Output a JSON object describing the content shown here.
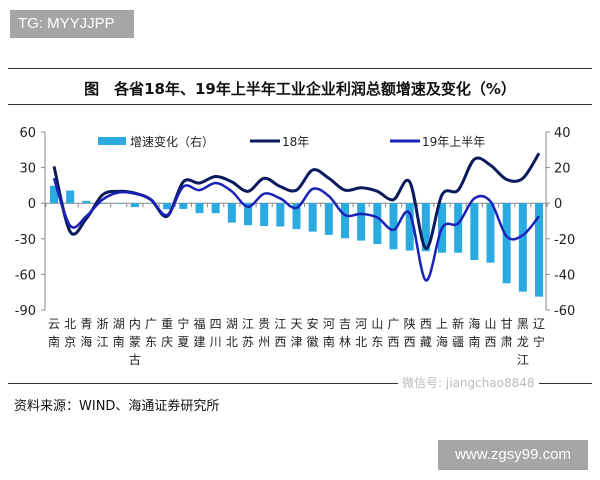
{
  "header": {
    "tag": "TG: MYYJJPP"
  },
  "chart_data": {
    "type": "bar+line",
    "title": "图　各省18年、19年上半年工业企业利润总额增速及变化（%）",
    "categories": [
      "云南",
      "北京",
      "青海",
      "浙江",
      "湖南",
      "内蒙古",
      "广东",
      "重庆",
      "宁夏",
      "福建",
      "四川",
      "湖北",
      "江苏",
      "贵州",
      "江西",
      "天津",
      "安徽",
      "河南",
      "吉林",
      "河北",
      "山东",
      "广西",
      "陕西",
      "西藏",
      "上海",
      "新疆",
      "海南",
      "山西",
      "甘肃",
      "黑龙江",
      "辽宁"
    ],
    "left_axis": {
      "ylim": [
        -90,
        60
      ],
      "ticks": [
        "60",
        "30",
        "0",
        "-30",
        "-60",
        "-90"
      ]
    },
    "right_axis": {
      "ylim": [
        -60,
        40
      ],
      "ticks": [
        "40",
        "20",
        "0",
        "-20",
        "-40",
        "-60"
      ]
    },
    "series": [
      {
        "name": "增速变化（右）",
        "kind": "bar",
        "axis": "right",
        "color": "#29abe2",
        "values": [
          9.8,
          7.1,
          1.3,
          0,
          0,
          -2.2,
          0,
          -3.4,
          -3.2,
          -5.6,
          -5.6,
          -10.9,
          -12.4,
          -12.8,
          -13.1,
          -14.6,
          -16,
          -17.8,
          -19.7,
          -21,
          -22.9,
          -25.9,
          -26.6,
          -27,
          -27.8,
          -27.8,
          -31.9,
          -33.4,
          -45,
          -49.7,
          -52.5
        ]
      },
      {
        "name": "18年",
        "kind": "line",
        "axis": "left",
        "color": "#0b1a5c",
        "values": [
          31,
          -24,
          -13,
          7,
          10,
          8.5,
          3,
          -11,
          18,
          17,
          22.5,
          18,
          10,
          21,
          14,
          11,
          28,
          21,
          11,
          13,
          10,
          3,
          18,
          -38,
          7,
          11,
          37,
          32,
          20,
          21,
          42
        ]
      },
      {
        "name": "19年上半年",
        "kind": "line",
        "axis": "left",
        "color": "#1a22b8",
        "values": [
          21,
          -19,
          -11,
          3,
          9,
          8,
          3,
          -10,
          14,
          11,
          17,
          10,
          -3,
          8,
          4,
          -4,
          12,
          6,
          -10,
          -9,
          -12,
          -22.5,
          -8.5,
          -65,
          -21,
          -17,
          4,
          1.5,
          -28,
          -27,
          -11
        ]
      }
    ],
    "legend": "top"
  },
  "footer": {
    "source": "资料来源：WIND、海通证券研究所",
    "watermark": "微信号: jiangchao8848",
    "site": "www.zgsy99.com"
  }
}
